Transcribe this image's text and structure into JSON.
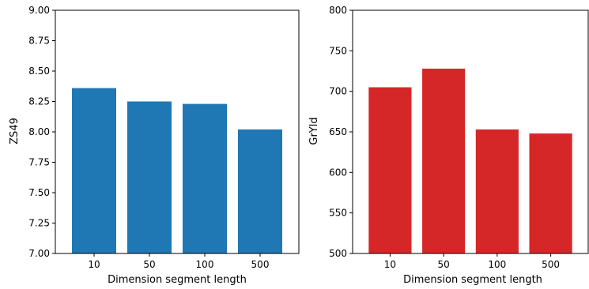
{
  "chart_data": [
    {
      "type": "bar",
      "categories": [
        "10",
        "50",
        "100",
        "500"
      ],
      "values": [
        8.36,
        8.25,
        8.23,
        8.02
      ],
      "xlabel": "Dimension segment length",
      "ylabel": "ZS49",
      "ylim": [
        7.0,
        9.0
      ],
      "yticks": [
        "7.00",
        "7.25",
        "7.50",
        "7.75",
        "8.00",
        "8.25",
        "8.50",
        "8.75",
        "9.00"
      ],
      "color": "#1f77b4",
      "grid": false
    },
    {
      "type": "bar",
      "categories": [
        "10",
        "50",
        "100",
        "500"
      ],
      "values": [
        705,
        728,
        653,
        648
      ],
      "xlabel": "Dimension segment length",
      "ylabel": "GrYld",
      "ylim": [
        500,
        800
      ],
      "yticks": [
        "500",
        "550",
        "600",
        "650",
        "700",
        "750",
        "800"
      ],
      "color": "#d62728",
      "grid": false
    }
  ]
}
